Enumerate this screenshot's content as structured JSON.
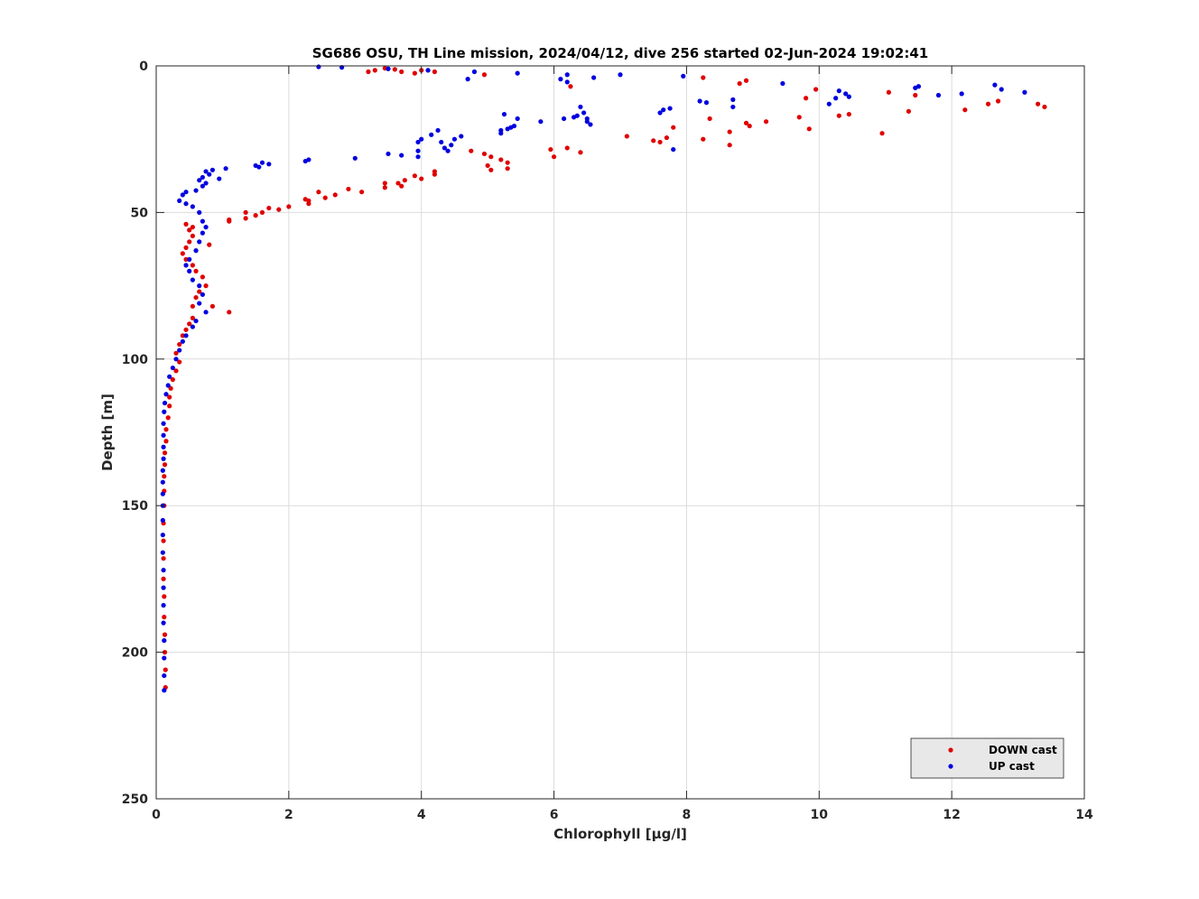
{
  "chart_data": {
    "type": "scatter",
    "title": "SG686 OSU, TH Line mission, 2024/04/12, dive 256 started 02-Jun-2024 19:02:41",
    "xlabel": "Chlorophyll [μg/l]",
    "ylabel": "Depth [m]",
    "xlim": [
      0,
      14
    ],
    "ylim": [
      0,
      250
    ],
    "y_reversed": true,
    "xticks": [
      "0",
      "2",
      "4",
      "6",
      "8",
      "10",
      "12",
      "14"
    ],
    "yticks": [
      "0",
      "50",
      "100",
      "150",
      "200",
      "250"
    ],
    "grid": true,
    "legend_position": "bottom-right",
    "series": [
      {
        "name": "DOWN cast",
        "color": "#e00000",
        "points": [
          [
            3.2,
            2
          ],
          [
            3.3,
            1.5
          ],
          [
            3.45,
            0.8
          ],
          [
            3.6,
            1.2
          ],
          [
            3.7,
            2
          ],
          [
            3.9,
            2.5
          ],
          [
            4.0,
            1.5
          ],
          [
            4.2,
            2
          ],
          [
            4.95,
            3
          ],
          [
            6.25,
            7
          ],
          [
            8.25,
            4
          ],
          [
            8.8,
            6
          ],
          [
            8.9,
            5
          ],
          [
            9.8,
            11
          ],
          [
            9.95,
            8
          ],
          [
            11.05,
            9
          ],
          [
            11.45,
            10
          ],
          [
            12.55,
            13
          ],
          [
            12.7,
            12
          ],
          [
            13.3,
            13
          ],
          [
            13.4,
            14
          ],
          [
            12.2,
            15
          ],
          [
            11.35,
            15.5
          ],
          [
            10.3,
            17
          ],
          [
            10.45,
            16.5
          ],
          [
            9.7,
            17.5
          ],
          [
            9.85,
            21.5
          ],
          [
            8.9,
            19.5
          ],
          [
            8.95,
            20.5
          ],
          [
            9.2,
            19
          ],
          [
            8.35,
            18
          ],
          [
            7.8,
            21
          ],
          [
            8.65,
            22.5
          ],
          [
            8.25,
            25
          ],
          [
            8.65,
            27
          ],
          [
            7.7,
            24.5
          ],
          [
            7.6,
            26
          ],
          [
            7.5,
            25.5
          ],
          [
            10.95,
            23
          ],
          [
            7.1,
            24
          ],
          [
            5.95,
            28.5
          ],
          [
            6.0,
            31
          ],
          [
            6.2,
            28
          ],
          [
            6.4,
            29.5
          ],
          [
            5.3,
            33
          ],
          [
            5.2,
            32
          ],
          [
            5.3,
            35
          ],
          [
            5.0,
            34
          ],
          [
            5.05,
            31
          ],
          [
            4.95,
            30
          ],
          [
            4.75,
            29
          ],
          [
            5.05,
            35.5
          ],
          [
            4.2,
            36
          ],
          [
            4.2,
            37
          ],
          [
            4.0,
            38.5
          ],
          [
            3.9,
            37.5
          ],
          [
            3.75,
            39
          ],
          [
            3.65,
            40
          ],
          [
            3.7,
            41
          ],
          [
            3.45,
            40
          ],
          [
            3.45,
            41.5
          ],
          [
            3.1,
            43
          ],
          [
            2.9,
            42
          ],
          [
            2.7,
            44
          ],
          [
            2.55,
            45
          ],
          [
            2.45,
            43
          ],
          [
            2.3,
            46
          ],
          [
            2.25,
            45.5
          ],
          [
            2.3,
            47
          ],
          [
            2.0,
            48
          ],
          [
            1.85,
            49
          ],
          [
            1.7,
            48.5
          ],
          [
            1.6,
            50
          ],
          [
            1.5,
            51
          ],
          [
            1.35,
            50
          ],
          [
            1.35,
            52
          ],
          [
            1.1,
            52.5
          ],
          [
            1.1,
            53
          ],
          [
            0.8,
            61
          ],
          [
            0.55,
            55
          ],
          [
            0.45,
            54
          ],
          [
            0.5,
            56
          ],
          [
            0.55,
            58
          ],
          [
            0.5,
            60
          ],
          [
            0.45,
            62
          ],
          [
            0.4,
            64
          ],
          [
            0.45,
            66
          ],
          [
            0.55,
            68
          ],
          [
            0.6,
            70
          ],
          [
            0.7,
            72
          ],
          [
            0.75,
            75
          ],
          [
            0.65,
            77
          ],
          [
            0.6,
            79
          ],
          [
            0.55,
            82
          ],
          [
            0.85,
            82
          ],
          [
            1.1,
            84
          ],
          [
            0.55,
            86
          ],
          [
            0.5,
            88
          ],
          [
            0.45,
            90
          ],
          [
            0.4,
            92
          ],
          [
            0.35,
            95
          ],
          [
            0.3,
            98
          ],
          [
            0.35,
            101
          ],
          [
            0.3,
            104
          ],
          [
            0.25,
            107
          ],
          [
            0.22,
            110
          ],
          [
            0.2,
            113
          ],
          [
            0.2,
            116
          ],
          [
            0.18,
            120
          ],
          [
            0.15,
            124
          ],
          [
            0.15,
            128
          ],
          [
            0.13,
            132
          ],
          [
            0.13,
            136
          ],
          [
            0.12,
            140
          ],
          [
            0.12,
            145
          ],
          [
            0.12,
            150
          ],
          [
            0.11,
            156
          ],
          [
            0.11,
            162
          ],
          [
            0.11,
            168
          ],
          [
            0.11,
            175
          ],
          [
            0.12,
            181
          ],
          [
            0.12,
            188
          ],
          [
            0.13,
            194
          ],
          [
            0.13,
            200
          ],
          [
            0.14,
            206
          ],
          [
            0.14,
            212
          ]
        ]
      },
      {
        "name": "UP cast",
        "color": "#0000e0",
        "points": [
          [
            2.45,
            0.3
          ],
          [
            2.8,
            0.5
          ],
          [
            3.5,
            1
          ],
          [
            4.1,
            1.5
          ],
          [
            4.8,
            2
          ],
          [
            4.7,
            4.5
          ],
          [
            5.45,
            2.5
          ],
          [
            6.1,
            4.5
          ],
          [
            6.2,
            3
          ],
          [
            6.2,
            5.5
          ],
          [
            6.6,
            4
          ],
          [
            7.0,
            3
          ],
          [
            7.95,
            3.5
          ],
          [
            9.45,
            6
          ],
          [
            10.15,
            13
          ],
          [
            10.25,
            11
          ],
          [
            10.3,
            8.5
          ],
          [
            10.4,
            9.5
          ],
          [
            10.45,
            10.5
          ],
          [
            11.45,
            7.5
          ],
          [
            11.5,
            7
          ],
          [
            11.8,
            10
          ],
          [
            12.15,
            9.5
          ],
          [
            12.65,
            6.5
          ],
          [
            12.75,
            8
          ],
          [
            13.1,
            9
          ],
          [
            8.2,
            12
          ],
          [
            8.3,
            12.5
          ],
          [
            8.7,
            11.5
          ],
          [
            8.7,
            14
          ],
          [
            7.75,
            14.5
          ],
          [
            7.65,
            15
          ],
          [
            7.6,
            16
          ],
          [
            7.8,
            28.5
          ],
          [
            6.4,
            14
          ],
          [
            6.45,
            16
          ],
          [
            6.5,
            18
          ],
          [
            6.5,
            19
          ],
          [
            6.55,
            20
          ],
          [
            6.35,
            17
          ],
          [
            6.3,
            17.5
          ],
          [
            6.15,
            18
          ],
          [
            5.8,
            19
          ],
          [
            5.45,
            18
          ],
          [
            5.4,
            20.5
          ],
          [
            5.35,
            21
          ],
          [
            5.3,
            21.5
          ],
          [
            5.25,
            16.5
          ],
          [
            5.2,
            22
          ],
          [
            5.2,
            23
          ],
          [
            4.6,
            24
          ],
          [
            4.5,
            25
          ],
          [
            4.45,
            27
          ],
          [
            4.4,
            29
          ],
          [
            4.35,
            28
          ],
          [
            4.3,
            26
          ],
          [
            4.25,
            22
          ],
          [
            4.15,
            23.5
          ],
          [
            4.0,
            25
          ],
          [
            3.95,
            26
          ],
          [
            3.95,
            29
          ],
          [
            3.95,
            31
          ],
          [
            3.7,
            30.5
          ],
          [
            3.5,
            30
          ],
          [
            3.0,
            31.5
          ],
          [
            2.3,
            32
          ],
          [
            2.25,
            32.5
          ],
          [
            1.7,
            33.5
          ],
          [
            1.6,
            33
          ],
          [
            1.55,
            34.5
          ],
          [
            1.5,
            34
          ],
          [
            1.05,
            35
          ],
          [
            0.95,
            38.5
          ],
          [
            0.85,
            35.5
          ],
          [
            0.8,
            37
          ],
          [
            0.75,
            36
          ],
          [
            0.75,
            40
          ],
          [
            0.7,
            41
          ],
          [
            0.7,
            38
          ],
          [
            0.65,
            39
          ],
          [
            0.6,
            42.5
          ],
          [
            0.45,
            43
          ],
          [
            0.4,
            44
          ],
          [
            0.35,
            46
          ],
          [
            0.45,
            47
          ],
          [
            0.55,
            48
          ],
          [
            0.65,
            50
          ],
          [
            0.7,
            53
          ],
          [
            0.75,
            55
          ],
          [
            0.7,
            57
          ],
          [
            0.65,
            60
          ],
          [
            0.6,
            63
          ],
          [
            0.5,
            66
          ],
          [
            0.45,
            68
          ],
          [
            0.5,
            70
          ],
          [
            0.55,
            73
          ],
          [
            0.65,
            75
          ],
          [
            0.7,
            78
          ],
          [
            0.65,
            81
          ],
          [
            0.75,
            84
          ],
          [
            0.6,
            87
          ],
          [
            0.55,
            89
          ],
          [
            0.45,
            92
          ],
          [
            0.4,
            94
          ],
          [
            0.35,
            97
          ],
          [
            0.3,
            100
          ],
          [
            0.25,
            103
          ],
          [
            0.2,
            106
          ],
          [
            0.18,
            109
          ],
          [
            0.15,
            112
          ],
          [
            0.13,
            115
          ],
          [
            0.12,
            118
          ],
          [
            0.11,
            122
          ],
          [
            0.11,
            126
          ],
          [
            0.11,
            130
          ],
          [
            0.11,
            134
          ],
          [
            0.1,
            138
          ],
          [
            0.1,
            142
          ],
          [
            0.1,
            146
          ],
          [
            0.1,
            150
          ],
          [
            0.1,
            155
          ],
          [
            0.1,
            160
          ],
          [
            0.1,
            166
          ],
          [
            0.11,
            172
          ],
          [
            0.11,
            178
          ],
          [
            0.11,
            184
          ],
          [
            0.11,
            190
          ],
          [
            0.12,
            196
          ],
          [
            0.12,
            202
          ],
          [
            0.12,
            208
          ],
          [
            0.12,
            213
          ]
        ]
      }
    ]
  }
}
